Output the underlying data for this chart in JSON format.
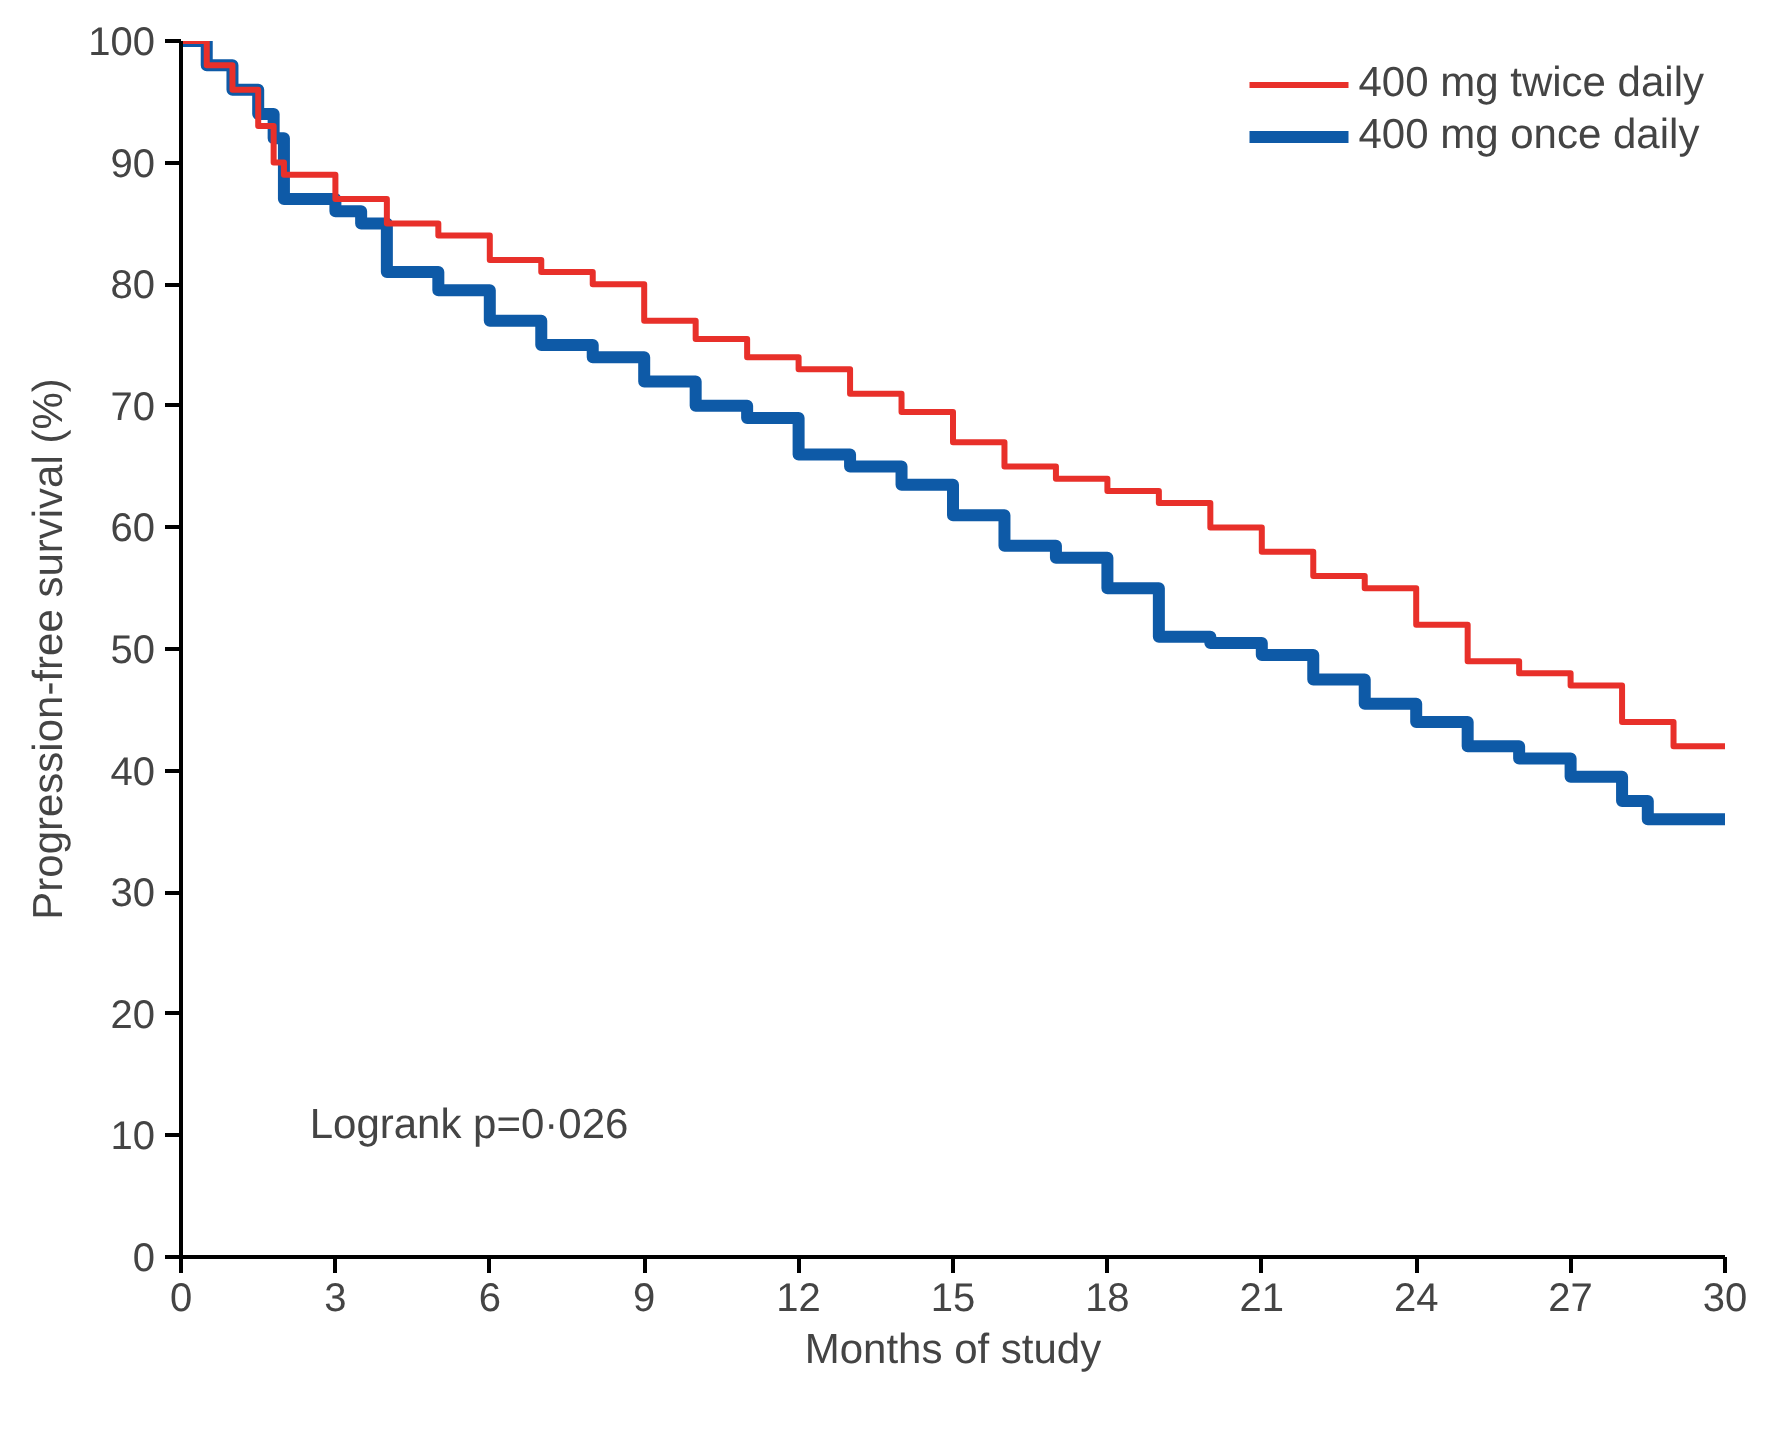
{
  "chart_data": {
    "type": "step",
    "xlabel": "Months of study",
    "ylabel": "Progression-free survival (%)",
    "xlim": [
      0,
      30
    ],
    "ylim": [
      0,
      100
    ],
    "xticks": [
      0,
      3,
      6,
      9,
      12,
      15,
      18,
      21,
      24,
      27,
      30
    ],
    "yticks": [
      0,
      10,
      20,
      30,
      40,
      50,
      60,
      70,
      80,
      90,
      100
    ],
    "grid": false,
    "legend": "top right",
    "annotations": [
      "Logrank p=0·026"
    ],
    "series": [
      {
        "name": "400 mg twice daily",
        "color": "#e8302a",
        "x": [
          0,
          0.5,
          1,
          1.5,
          1.8,
          2,
          3,
          4,
          5,
          6,
          7,
          8,
          9,
          10,
          11,
          12,
          13,
          14,
          15,
          16,
          17,
          18,
          19,
          20,
          21,
          22,
          23,
          24,
          25,
          26,
          27,
          28,
          29,
          30
        ],
        "values": [
          100,
          98,
          96,
          93,
          90,
          89,
          87,
          85,
          84,
          82,
          81,
          80,
          77,
          75.5,
          74,
          73,
          71,
          69.5,
          67,
          65,
          64,
          63,
          62,
          60,
          58,
          56,
          55,
          52,
          49,
          48,
          47,
          44,
          42,
          42
        ]
      },
      {
        "name": "400 mg once daily",
        "color": "#0e5aa7",
        "x": [
          0,
          0.5,
          1,
          1.5,
          1.8,
          2,
          3,
          3.5,
          4,
          5,
          6,
          7,
          8,
          9,
          10,
          11,
          12,
          13,
          14,
          15,
          16,
          17,
          18,
          19,
          20,
          21,
          22,
          23,
          24,
          25,
          26,
          27,
          28,
          28.5,
          30
        ],
        "values": [
          100,
          98,
          96,
          94,
          92,
          87,
          86,
          85,
          81,
          79.5,
          77,
          75,
          74,
          72,
          70,
          69,
          66,
          65,
          63.5,
          61,
          58.5,
          57.5,
          55,
          51,
          50.5,
          49.5,
          47.5,
          45.5,
          44,
          42,
          41,
          39.5,
          37.5,
          36,
          36
        ]
      }
    ]
  }
}
